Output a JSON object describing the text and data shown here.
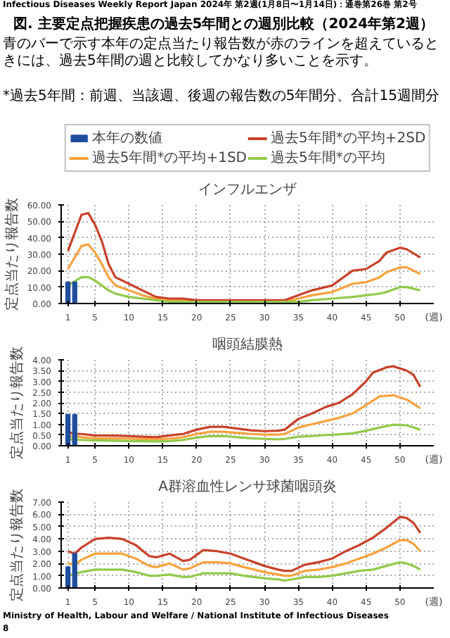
{
  "chart_data": [
    {
      "type": "line",
      "title": "インフルエンザ",
      "ylabel": "定点当たり報告数",
      "xlabel": "(週)",
      "annotations": [
        "Infectious Diseases Weekly Report Japan",
        "2024年 第2週(1月8日〜1月14日)：通巻第26巻 第2号",
        "図. 主要定点把握疾患の過去5年間との週別比較（2024年第2週）",
        "青のバーで示す本年の定点当たり報告数が赤のラインを超えているときには、過去5年間の週と比較してかなり多いことを示す。",
        "*過去5年間：前週、当該週、後週の報告数の5年間分、合計15週間分"
      ],
      "xlim": [
        0,
        55
      ],
      "xticks": [
        1,
        5,
        10,
        15,
        20,
        25,
        30,
        35,
        40,
        45,
        50
      ],
      "ylim": [
        0,
        60
      ],
      "yticks": [
        {
          "value": 0,
          "label": "0.00"
        },
        {
          "value": 10,
          "label": "10.00"
        },
        {
          "value": 20,
          "label": "20.00"
        },
        {
          "value": 30,
          "label": "30.00"
        },
        {
          "value": 40,
          "label": "40.00"
        },
        {
          "value": 50,
          "label": "50.00"
        },
        {
          "value": 60,
          "label": "60.00"
        }
      ],
      "grid": true,
      "legend": "top",
      "series": [
        {
          "name": "本年の数値",
          "type": "bar",
          "color": "#1f4e9c",
          "x": [
            1,
            2
          ],
          "values": [
            13,
            13
          ]
        },
        {
          "name": "過去5年間*の平均+1SD",
          "color": "#f7a23e",
          "x": [
            1,
            3,
            4,
            5,
            6,
            7,
            8,
            10,
            12,
            14,
            16,
            18,
            20,
            25,
            30,
            33,
            35,
            37,
            40,
            43,
            45,
            47,
            48,
            50,
            51,
            53
          ],
          "values": [
            21,
            35,
            36,
            31,
            24,
            16,
            11,
            8,
            5,
            3,
            2,
            2,
            1,
            1,
            1,
            1,
            3,
            5,
            7,
            12,
            13,
            16,
            19,
            22,
            22,
            18
          ]
        },
        {
          "name": "過去5年間*の平均+2SD",
          "color": "#c8412a",
          "x": [
            1,
            3,
            4,
            5,
            6,
            7,
            8,
            10,
            12,
            14,
            16,
            18,
            20,
            25,
            30,
            33,
            35,
            37,
            40,
            43,
            45,
            47,
            48,
            50,
            51,
            53
          ],
          "values": [
            32,
            54,
            55,
            48,
            38,
            24,
            16,
            12,
            8,
            4,
            3,
            3,
            2,
            2,
            2,
            2,
            5,
            8,
            11,
            20,
            21,
            26,
            31,
            34,
            33,
            28
          ]
        },
        {
          "name": "過去5年間*の平均",
          "color": "#92c94a",
          "x": [
            1,
            3,
            4,
            5,
            6,
            7,
            8,
            10,
            12,
            14,
            16,
            18,
            20,
            25,
            30,
            33,
            35,
            37,
            40,
            43,
            45,
            47,
            48,
            50,
            51,
            53
          ],
          "values": [
            11,
            16,
            16,
            14,
            11,
            8,
            6,
            4,
            3,
            2,
            1,
            1,
            1,
            1,
            1,
            1,
            1,
            2,
            3,
            4,
            5,
            6,
            7,
            10,
            10,
            8
          ]
        }
      ]
    },
    {
      "type": "line",
      "title": "咽頭結膜熱",
      "ylabel": "定点当たり報告数",
      "xlabel": "(週)",
      "xlim": [
        0,
        55
      ],
      "xticks": [
        1,
        5,
        10,
        15,
        20,
        25,
        30,
        35,
        40,
        45,
        50
      ],
      "ylim": [
        0,
        4
      ],
      "yticks": [
        {
          "value": 0,
          "label": "0.00"
        },
        {
          "value": 0.5,
          "label": "0.50"
        },
        {
          "value": 1,
          "label": "1.00"
        },
        {
          "value": 1.5,
          "label": "1.50"
        },
        {
          "value": 2,
          "label": "2.00"
        },
        {
          "value": 2.5,
          "label": "2.50"
        },
        {
          "value": 3,
          "label": "3.00"
        },
        {
          "value": 3.5,
          "label": "3.50"
        },
        {
          "value": 4,
          "label": "4.00"
        }
      ],
      "grid": true,
      "series": [
        {
          "type": "bar",
          "color": "#1f4e9c",
          "x": [
            1,
            2
          ],
          "values": [
            1.45,
            1.45
          ]
        },
        {
          "color": "#f7a23e",
          "x": [
            1,
            3,
            5,
            10,
            14,
            16,
            18,
            20,
            22,
            24,
            26,
            28,
            30,
            32,
            33,
            35,
            37,
            39,
            41,
            43,
            45,
            47,
            49,
            51,
            53
          ],
          "values": [
            0.45,
            0.4,
            0.35,
            0.33,
            0.3,
            0.33,
            0.4,
            0.55,
            0.65,
            0.65,
            0.6,
            0.55,
            0.52,
            0.52,
            0.55,
            0.85,
            1.0,
            1.15,
            1.3,
            1.5,
            1.9,
            2.3,
            2.35,
            2.15,
            1.75
          ]
        },
        {
          "color": "#c8412a",
          "x": [
            1,
            2,
            3,
            5,
            8,
            10,
            12,
            14,
            16,
            18,
            20,
            22,
            24,
            26,
            28,
            30,
            32,
            33,
            35,
            37,
            39,
            41,
            43,
            45,
            46,
            48,
            49,
            51,
            52,
            53
          ],
          "values": [
            0.65,
            0.55,
            0.55,
            0.48,
            0.47,
            0.45,
            0.42,
            0.4,
            0.48,
            0.55,
            0.75,
            0.88,
            0.88,
            0.8,
            0.72,
            0.68,
            0.7,
            0.75,
            1.25,
            1.5,
            1.8,
            2.0,
            2.4,
            3.0,
            3.4,
            3.65,
            3.7,
            3.5,
            3.3,
            2.75
          ]
        },
        {
          "color": "#92c94a",
          "x": [
            1,
            3,
            5,
            10,
            14,
            16,
            18,
            20,
            22,
            24,
            26,
            28,
            30,
            32,
            33,
            35,
            37,
            39,
            41,
            43,
            45,
            47,
            49,
            51,
            53
          ],
          "values": [
            0.3,
            0.27,
            0.25,
            0.22,
            0.2,
            0.22,
            0.27,
            0.38,
            0.45,
            0.45,
            0.4,
            0.35,
            0.32,
            0.3,
            0.32,
            0.42,
            0.45,
            0.5,
            0.53,
            0.58,
            0.7,
            0.85,
            0.98,
            0.95,
            0.75
          ]
        }
      ]
    },
    {
      "type": "line",
      "title": "A群溶血性レンサ球菌咽頭炎",
      "ylabel": "定点当たり報告数",
      "xlabel": "(週)",
      "annotations": [
        "Ministry of Health, Labour and Welfare / National Institute of Infectious Diseases",
        "8"
      ],
      "xlim": [
        0,
        55
      ],
      "xticks": [
        1,
        5,
        10,
        15,
        20,
        25,
        30,
        35,
        40,
        45,
        50
      ],
      "ylim": [
        0,
        7
      ],
      "yticks": [
        {
          "value": 0,
          "label": "0.00"
        },
        {
          "value": 1,
          "label": "1.00"
        },
        {
          "value": 2,
          "label": "2.00"
        },
        {
          "value": 3,
          "label": "3.00"
        },
        {
          "value": 4,
          "label": "4.00"
        },
        {
          "value": 5,
          "label": "5.00"
        },
        {
          "value": 6,
          "label": "6.00"
        },
        {
          "value": 7,
          "label": "7.00"
        }
      ],
      "grid": true,
      "series": [
        {
          "type": "bar",
          "color": "#1f4e9c",
          "x": [
            1,
            2
          ],
          "values": [
            1.7,
            2.8
          ]
        },
        {
          "color": "#f7a23e",
          "x": [
            1,
            2,
            3,
            5,
            7,
            9,
            11,
            13,
            14,
            16,
            18,
            19,
            21,
            23,
            25,
            27,
            30,
            32,
            33,
            34,
            36,
            38,
            40,
            42,
            44,
            46,
            48,
            50,
            51,
            52,
            53
          ],
          "values": [
            2.0,
            1.9,
            2.3,
            2.8,
            2.8,
            2.8,
            2.4,
            1.8,
            1.7,
            2.0,
            1.5,
            1.6,
            2.1,
            2.1,
            2.0,
            1.7,
            1.3,
            1.1,
            1.0,
            1.0,
            1.4,
            1.5,
            1.7,
            2.0,
            2.4,
            2.8,
            3.3,
            3.9,
            3.9,
            3.6,
            3.0
          ]
        },
        {
          "color": "#c8412a",
          "x": [
            1,
            2,
            3,
            5,
            7,
            9,
            11,
            13,
            14,
            16,
            18,
            19,
            21,
            23,
            25,
            27,
            30,
            32,
            33,
            34,
            36,
            38,
            40,
            42,
            44,
            46,
            48,
            50,
            51,
            52,
            53
          ],
          "values": [
            3.0,
            2.8,
            3.3,
            4.0,
            4.1,
            4.0,
            3.5,
            2.6,
            2.5,
            2.8,
            2.2,
            2.3,
            3.1,
            3.0,
            2.8,
            2.4,
            1.8,
            1.5,
            1.4,
            1.4,
            1.9,
            2.1,
            2.4,
            3.0,
            3.5,
            4.1,
            4.9,
            5.8,
            5.7,
            5.3,
            4.5
          ]
        },
        {
          "color": "#92c94a",
          "x": [
            1,
            3,
            5,
            9,
            11,
            13,
            14,
            16,
            18,
            19,
            21,
            23,
            25,
            27,
            30,
            32,
            33,
            34,
            36,
            38,
            40,
            42,
            44,
            46,
            48,
            50,
            51,
            52,
            53
          ],
          "values": [
            1.0,
            1.3,
            1.5,
            1.5,
            1.3,
            1.0,
            1.0,
            1.1,
            0.9,
            0.9,
            1.2,
            1.2,
            1.2,
            1.0,
            0.8,
            0.7,
            0.6,
            0.7,
            0.9,
            0.9,
            1.0,
            1.2,
            1.4,
            1.5,
            1.8,
            2.1,
            2.0,
            1.8,
            1.5
          ]
        }
      ]
    }
  ]
}
